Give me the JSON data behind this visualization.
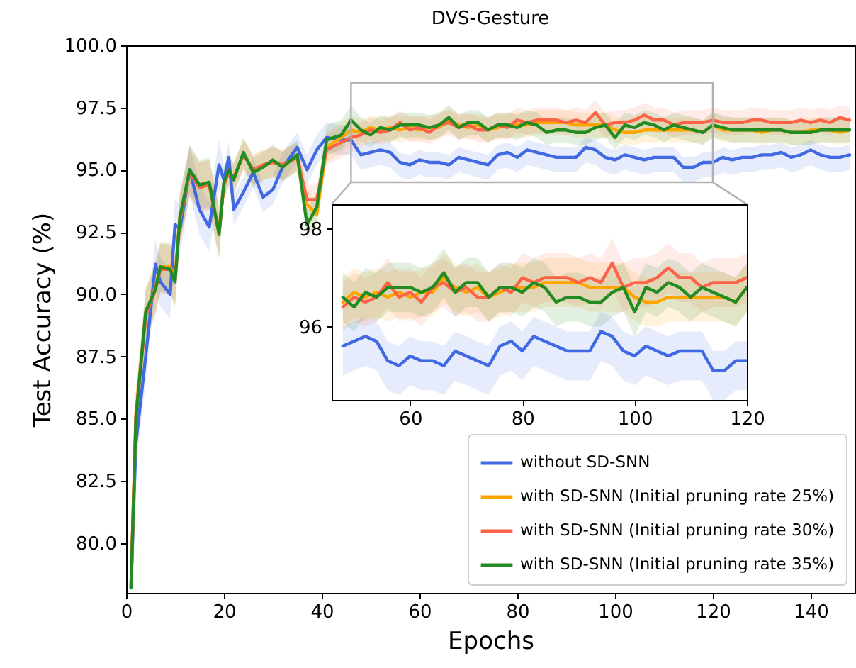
{
  "chart_data": [
    {
      "type": "line",
      "title": "DVS-Gesture",
      "xlabel": "Epochs",
      "ylabel": "Test Accuracy (%)",
      "xlim": [
        0,
        149
      ],
      "ylim": [
        78,
        100
      ],
      "xticks": [
        0,
        20,
        40,
        60,
        80,
        100,
        120,
        140
      ],
      "yticks": [
        {
          "value": 80,
          "label": "80.0"
        },
        82.5,
        {
          "value": 85,
          "label": "85.0"
        },
        87.5,
        {
          "value": 90,
          "label": "90.0"
        },
        92.5,
        {
          "value": 95,
          "label": "95.0"
        },
        97.5,
        {
          "value": 100,
          "label": "100.0"
        }
      ],
      "grid": false,
      "legend": "bottom right",
      "x": [
        1,
        2,
        4,
        6,
        7,
        9,
        10,
        11,
        13,
        15,
        17,
        19,
        20,
        21,
        22,
        24,
        26,
        28,
        30,
        32,
        35,
        37,
        39,
        41,
        44,
        46,
        48,
        50,
        52,
        54,
        56,
        58,
        60,
        62,
        64,
        66,
        68,
        70,
        72,
        74,
        76,
        78,
        80,
        82,
        84,
        86,
        88,
        90,
        92,
        94,
        96,
        98,
        100,
        102,
        104,
        106,
        108,
        110,
        112,
        114,
        116,
        118,
        120,
        122,
        124,
        126,
        128,
        130,
        132,
        134,
        136,
        138,
        140,
        142,
        144,
        146,
        148
      ],
      "series": [
        {
          "name": "without SD-SNN",
          "color": "#4169e1",
          "values": [
            78.2,
            84,
            87.5,
            91.2,
            90.5,
            90,
            92.8,
            92.6,
            95,
            93.4,
            92.7,
            95.2,
            94.6,
            95.5,
            93.4,
            94.1,
            94.9,
            93.9,
            94.2,
            95.1,
            95.9,
            95.0,
            95.8,
            96.3,
            96.2,
            96.2,
            95.6,
            95.7,
            95.8,
            95.7,
            95.3,
            95.2,
            95.4,
            95.3,
            95.3,
            95.2,
            95.5,
            95.4,
            95.3,
            95.2,
            95.6,
            95.7,
            95.5,
            95.8,
            95.7,
            95.6,
            95.5,
            95.5,
            95.5,
            95.9,
            95.8,
            95.5,
            95.4,
            95.6,
            95.5,
            95.4,
            95.5,
            95.5,
            95.5,
            95.1,
            95.1,
            95.3,
            95.3,
            95.5,
            95.4,
            95.5,
            95.5,
            95.6,
            95.6,
            95.7,
            95.5,
            95.6,
            95.8,
            95.6,
            95.5,
            95.5,
            95.6
          ],
          "lower": [
            78.0,
            83,
            86.5,
            90.2,
            89.5,
            89,
            91.8,
            91.6,
            94,
            92.4,
            91.7,
            94.2,
            93.8,
            94.9,
            92.8,
            93.5,
            94.3,
            93.3,
            93.6,
            94.5,
            95.3,
            94.4,
            95.2,
            95.7,
            95.6,
            95.6,
            95.0,
            95.1,
            95.2,
            95.1,
            94.7,
            94.6,
            94.8,
            94.7,
            94.7,
            94.6,
            94.9,
            94.8,
            94.7,
            94.6,
            95.0,
            95.1,
            94.9,
            95.2,
            95.1,
            95.0,
            94.9,
            94.9,
            94.9,
            95.3,
            95.2,
            94.9,
            94.8,
            95.0,
            94.9,
            94.8,
            94.9,
            94.9,
            94.9,
            94.5,
            94.5,
            94.7,
            94.7,
            94.9,
            94.8,
            94.9,
            94.9,
            95.0,
            95.0,
            95.1,
            94.9,
            95.0,
            95.2,
            95.0,
            94.9,
            94.9,
            95.0
          ],
          "upper": [
            79.2,
            85,
            88.5,
            92.2,
            91.5,
            91,
            93.8,
            93.6,
            96,
            94.4,
            93.7,
            96.2,
            95.2,
            96.1,
            94.0,
            94.7,
            95.5,
            94.5,
            94.8,
            95.7,
            96.5,
            95.6,
            96.4,
            96.9,
            96.8,
            96.8,
            96.0,
            96.1,
            96.2,
            96.1,
            95.7,
            95.6,
            95.8,
            95.7,
            95.7,
            95.6,
            95.9,
            95.8,
            95.7,
            95.6,
            96.0,
            96.1,
            95.9,
            96.2,
            96.1,
            96.0,
            95.9,
            95.9,
            95.9,
            96.3,
            96.2,
            95.9,
            95.8,
            96.0,
            95.9,
            95.8,
            95.9,
            95.9,
            95.9,
            95.5,
            95.5,
            95.7,
            95.7,
            95.9,
            95.8,
            95.9,
            95.9,
            96.0,
            96.0,
            96.1,
            95.9,
            96.0,
            96.2,
            96.0,
            95.9,
            95.9,
            96.0
          ]
        },
        {
          "name": "with SD-SNN (Initial pruning rate 25%)",
          "color": "#ffa500",
          "values": [
            78.3,
            85.2,
            89.2,
            90.3,
            91.1,
            91.1,
            90.6,
            93.1,
            94.9,
            94.3,
            94.4,
            92.5,
            94.4,
            94.9,
            94.7,
            95.6,
            95,
            95.2,
            95.3,
            95.2,
            95.5,
            93.6,
            93.2,
            95.9,
            96.3,
            96.6,
            96.5,
            96.7,
            96.6,
            96.7,
            96.6,
            96.7,
            96.6,
            96.7,
            96.7,
            97.0,
            96.8,
            96.7,
            96.8,
            96.6,
            96.7,
            96.8,
            96.8,
            96.8,
            96.9,
            96.9,
            96.9,
            96.9,
            96.8,
            96.8,
            96.8,
            96.8,
            96.6,
            96.5,
            96.5,
            96.6,
            96.6,
            96.6,
            96.6,
            96.6,
            96.6,
            96.5,
            96.8,
            96.6,
            96.6,
            96.6,
            96.6,
            96.5,
            96.6,
            96.6,
            96.5,
            96.5,
            96.6,
            96.6,
            96.6,
            96.5,
            96.6
          ],
          "lower": [
            78.0,
            84.2,
            88.2,
            89.3,
            90.1,
            90.1,
            89.6,
            92.1,
            93.9,
            93.3,
            93.4,
            91.5,
            93.8,
            94.3,
            94.1,
            95.0,
            94.4,
            94.6,
            94.7,
            94.6,
            94.9,
            93.0,
            92.6,
            95.3,
            95.7,
            96.0,
            96.0,
            96.2,
            96.1,
            96.2,
            96.1,
            96.2,
            96.1,
            96.2,
            96.2,
            96.5,
            96.3,
            96.2,
            96.3,
            96.1,
            96.2,
            96.3,
            96.3,
            96.3,
            96.4,
            96.4,
            96.4,
            96.4,
            96.3,
            96.3,
            96.3,
            96.3,
            96.1,
            96.0,
            96.0,
            96.1,
            96.1,
            96.1,
            96.1,
            96.1,
            96.1,
            96.0,
            96.3,
            96.1,
            96.1,
            96.1,
            96.1,
            96.0,
            96.1,
            96.1,
            96.0,
            96.0,
            96.1,
            96.1,
            96.1,
            96.0,
            96.1
          ],
          "upper": [
            79.3,
            86.2,
            90.2,
            91.3,
            92.1,
            92.1,
            91.6,
            94.1,
            95.9,
            95.3,
            95.4,
            93.5,
            95.0,
            95.5,
            95.3,
            96.2,
            95.6,
            95.8,
            95.9,
            95.8,
            96.1,
            94.2,
            93.8,
            96.5,
            96.9,
            97.2,
            97.0,
            97.2,
            97.1,
            97.2,
            97.1,
            97.2,
            97.1,
            97.2,
            97.2,
            97.5,
            97.3,
            97.2,
            97.3,
            97.1,
            97.2,
            97.3,
            97.3,
            97.3,
            97.4,
            97.4,
            97.4,
            97.4,
            97.3,
            97.3,
            97.3,
            97.3,
            97.1,
            97.0,
            97.0,
            97.1,
            97.1,
            97.1,
            97.1,
            97.1,
            97.1,
            97.0,
            97.3,
            97.1,
            97.1,
            97.1,
            97.1,
            97.0,
            97.1,
            97.1,
            97.0,
            97.0,
            97.1,
            97.1,
            97.1,
            97.0,
            97.1
          ]
        },
        {
          "name": "with SD-SNN (Initial pruning rate 30%)",
          "color": "#ff6347",
          "values": [
            78.3,
            85.1,
            89.1,
            90.2,
            91.0,
            91,
            90.6,
            93.0,
            94.9,
            94.3,
            94.4,
            92.5,
            94.4,
            94.9,
            94.7,
            95.6,
            95,
            95.2,
            95.3,
            95.2,
            95.5,
            93.8,
            93.8,
            95.8,
            96.1,
            96.3,
            96.4,
            96.6,
            96.5,
            96.6,
            96.9,
            96.6,
            96.7,
            96.5,
            96.8,
            96.9,
            96.7,
            96.8,
            96.6,
            96.6,
            96.8,
            96.7,
            97.0,
            96.9,
            97.0,
            97.0,
            97.0,
            96.9,
            97.0,
            96.9,
            97.3,
            96.8,
            96.9,
            96.9,
            97.0,
            97.2,
            97.0,
            97.0,
            96.8,
            96.9,
            96.9,
            96.9,
            97.0,
            96.9,
            96.9,
            96.9,
            97.0,
            97.0,
            96.9,
            96.9,
            96.9,
            97.0,
            96.9,
            97.0,
            96.9,
            97.1,
            97.0
          ],
          "lower": [
            78.0,
            84.1,
            88.1,
            89.2,
            90.0,
            90,
            89.6,
            92.0,
            93.9,
            93.3,
            93.4,
            91.5,
            93.8,
            94.3,
            94.1,
            95.0,
            94.4,
            94.6,
            94.7,
            94.6,
            94.9,
            93.2,
            93.2,
            95.2,
            95.5,
            95.7,
            95.9,
            96.1,
            96.0,
            96.1,
            96.4,
            96.1,
            96.2,
            96.0,
            96.3,
            96.4,
            96.2,
            96.3,
            96.1,
            96.1,
            96.3,
            96.2,
            96.5,
            96.4,
            96.5,
            96.5,
            96.5,
            96.4,
            96.5,
            96.4,
            96.8,
            96.3,
            96.4,
            96.4,
            96.5,
            96.7,
            96.5,
            96.5,
            96.3,
            96.4,
            96.4,
            96.4,
            96.5,
            96.4,
            96.4,
            96.4,
            96.5,
            96.5,
            96.4,
            96.4,
            96.4,
            96.5,
            96.4,
            96.5,
            96.4,
            96.6,
            96.5
          ],
          "upper": [
            79.3,
            86.1,
            90.1,
            91.2,
            92.0,
            92,
            91.6,
            94.0,
            95.9,
            95.3,
            95.4,
            93.5,
            95.0,
            95.5,
            95.3,
            96.2,
            95.6,
            95.8,
            95.9,
            95.8,
            96.1,
            94.4,
            94.4,
            96.4,
            96.7,
            96.9,
            96.9,
            97.1,
            97.0,
            97.1,
            97.4,
            97.1,
            97.2,
            97.0,
            97.3,
            97.4,
            97.2,
            97.3,
            97.1,
            97.1,
            97.3,
            97.2,
            97.5,
            97.4,
            97.5,
            97.5,
            97.5,
            97.4,
            97.5,
            97.4,
            97.8,
            97.3,
            97.4,
            97.4,
            97.5,
            97.7,
            97.5,
            97.5,
            97.3,
            97.4,
            97.4,
            97.4,
            97.5,
            97.4,
            97.4,
            97.4,
            97.5,
            97.5,
            97.4,
            97.4,
            97.4,
            97.5,
            97.4,
            97.5,
            97.4,
            97.6,
            97.5
          ]
        },
        {
          "name": "with SD-SNN (Initial pruning rate 35%)",
          "color": "#228b22",
          "values": [
            78.2,
            85,
            89.3,
            90.2,
            91.1,
            91,
            90.5,
            93.1,
            95,
            94.4,
            94.5,
            92.4,
            94.5,
            95,
            94.6,
            95.7,
            94.9,
            95.1,
            95.4,
            95.1,
            95.6,
            92.8,
            93.5,
            96.2,
            96.4,
            97.0,
            96.6,
            96.4,
            96.7,
            96.6,
            96.8,
            96.8,
            96.8,
            96.7,
            96.8,
            97.1,
            96.7,
            96.9,
            96.9,
            96.6,
            96.8,
            96.8,
            96.7,
            96.9,
            96.8,
            96.5,
            96.6,
            96.6,
            96.5,
            96.5,
            96.7,
            96.8,
            96.3,
            96.8,
            96.7,
            96.9,
            96.8,
            96.6,
            96.8,
            96.7,
            96.6,
            96.5,
            96.8,
            96.7,
            96.6,
            96.6,
            96.6,
            96.6,
            96.6,
            96.6,
            96.5,
            96.5,
            96.5,
            96.6,
            96.6,
            96.6,
            96.6
          ],
          "lower": [
            78.0,
            84,
            88.3,
            89.2,
            90.1,
            90,
            89.5,
            92.1,
            94,
            93.4,
            93.5,
            91.4,
            93.9,
            94.4,
            94.0,
            95.1,
            94.3,
            94.5,
            94.8,
            94.5,
            95.0,
            92.2,
            92.9,
            95.6,
            95.8,
            96.4,
            96.1,
            95.9,
            96.2,
            96.1,
            96.3,
            96.3,
            96.3,
            96.2,
            96.3,
            96.6,
            96.2,
            96.4,
            96.4,
            96.1,
            96.3,
            96.3,
            96.2,
            96.4,
            96.3,
            96.0,
            96.1,
            96.1,
            96.0,
            96.0,
            96.2,
            96.3,
            95.8,
            96.3,
            96.2,
            96.4,
            96.3,
            96.1,
            96.3,
            96.2,
            96.1,
            96.0,
            96.3,
            96.2,
            96.1,
            96.1,
            96.1,
            96.1,
            96.1,
            96.1,
            96.0,
            96.0,
            96.0,
            96.1,
            96.1,
            96.1,
            96.1
          ],
          "upper": [
            79.2,
            86,
            90.3,
            91.2,
            92.1,
            92,
            91.5,
            94.1,
            96,
            95.4,
            95.5,
            93.4,
            95.1,
            95.6,
            95.2,
            96.3,
            95.5,
            95.7,
            96.0,
            95.7,
            96.2,
            93.4,
            94.1,
            96.8,
            97.0,
            97.6,
            97.1,
            96.9,
            97.2,
            97.1,
            97.3,
            97.3,
            97.3,
            97.2,
            97.3,
            97.6,
            97.2,
            97.4,
            97.4,
            97.1,
            97.3,
            97.3,
            97.2,
            97.4,
            97.3,
            97.0,
            97.1,
            97.1,
            97.0,
            97.0,
            97.2,
            97.3,
            96.8,
            97.3,
            97.2,
            97.4,
            97.3,
            97.1,
            97.3,
            97.2,
            97.1,
            97.0,
            97.3,
            97.2,
            97.1,
            97.1,
            97.1,
            97.1,
            97.1,
            97.1,
            97.0,
            97.0,
            97.0,
            97.1,
            97.1,
            97.1,
            97.1
          ]
        }
      ]
    },
    {
      "type": "line",
      "xlim": [
        46,
        120
      ],
      "ylim": [
        94.5,
        98.5
      ],
      "xticks": [
        60,
        80,
        100,
        120
      ],
      "yticks": [
        96,
        98
      ],
      "grid": false,
      "x": [
        48,
        50,
        52,
        54,
        56,
        58,
        60,
        62,
        64,
        66,
        68,
        70,
        72,
        74,
        76,
        78,
        80,
        82,
        84,
        86,
        88,
        90,
        92,
        94,
        96,
        98,
        100,
        102,
        104,
        106,
        108,
        110,
        112,
        114,
        116,
        118,
        120
      ],
      "series": [
        {
          "color": "#4169e1",
          "values": [
            95.6,
            95.7,
            95.8,
            95.7,
            95.3,
            95.2,
            95.4,
            95.3,
            95.3,
            95.2,
            95.5,
            95.4,
            95.3,
            95.2,
            95.6,
            95.7,
            95.5,
            95.8,
            95.7,
            95.6,
            95.5,
            95.5,
            95.5,
            95.9,
            95.8,
            95.5,
            95.4,
            95.6,
            95.5,
            95.4,
            95.5,
            95.5,
            95.5,
            95.1,
            95.1,
            95.3,
            95.3
          ],
          "lower": [
            95.0,
            95.1,
            95.2,
            95.1,
            94.7,
            94.6,
            94.8,
            94.7,
            94.7,
            94.6,
            94.9,
            94.8,
            94.7,
            94.6,
            95.0,
            95.1,
            94.9,
            95.2,
            95.1,
            95.0,
            94.9,
            94.9,
            94.9,
            95.3,
            95.2,
            94.9,
            94.8,
            95.0,
            94.9,
            94.8,
            94.9,
            94.9,
            94.9,
            94.5,
            94.5,
            94.7,
            94.7
          ],
          "upper": [
            96.0,
            96.1,
            96.2,
            96.1,
            95.7,
            95.6,
            95.8,
            95.7,
            95.7,
            95.6,
            95.9,
            95.8,
            95.7,
            95.6,
            96.0,
            96.1,
            95.9,
            96.2,
            96.1,
            96.0,
            95.9,
            95.9,
            95.9,
            96.3,
            96.2,
            95.9,
            95.8,
            96.0,
            95.9,
            95.8,
            95.9,
            95.9,
            95.9,
            95.5,
            95.5,
            95.7,
            95.7
          ]
        },
        {
          "color": "#ffa500",
          "values": [
            96.5,
            96.7,
            96.6,
            96.7,
            96.6,
            96.7,
            96.6,
            96.7,
            96.7,
            97.0,
            96.8,
            96.7,
            96.8,
            96.6,
            96.7,
            96.8,
            96.8,
            96.8,
            96.9,
            96.9,
            96.9,
            96.9,
            96.8,
            96.8,
            96.8,
            96.8,
            96.6,
            96.5,
            96.5,
            96.6,
            96.6,
            96.6,
            96.6,
            96.6,
            96.6,
            96.5,
            96.8
          ],
          "lower": [
            96.0,
            96.2,
            96.1,
            96.2,
            96.1,
            96.2,
            96.1,
            96.2,
            96.2,
            96.5,
            96.3,
            96.2,
            96.3,
            96.1,
            96.2,
            96.3,
            96.3,
            96.3,
            96.4,
            96.4,
            96.4,
            96.4,
            96.3,
            96.3,
            96.3,
            96.3,
            96.1,
            96.0,
            96.0,
            96.1,
            96.1,
            96.1,
            96.1,
            96.1,
            96.1,
            96.0,
            96.3
          ],
          "upper": [
            97.0,
            97.2,
            97.1,
            97.2,
            97.1,
            97.2,
            97.1,
            97.2,
            97.2,
            97.5,
            97.3,
            97.2,
            97.3,
            97.1,
            97.2,
            97.3,
            97.3,
            97.3,
            97.4,
            97.4,
            97.4,
            97.4,
            97.3,
            97.3,
            97.3,
            97.3,
            97.1,
            97.0,
            97.0,
            97.1,
            97.1,
            97.1,
            97.1,
            97.1,
            97.1,
            97.0,
            97.3
          ]
        },
        {
          "color": "#ff6347",
          "values": [
            96.4,
            96.6,
            96.5,
            96.6,
            96.9,
            96.6,
            96.7,
            96.5,
            96.8,
            96.9,
            96.7,
            96.8,
            96.6,
            96.6,
            96.8,
            96.7,
            97.0,
            96.9,
            97.0,
            97.0,
            97.0,
            96.9,
            97.0,
            96.9,
            97.3,
            96.8,
            96.9,
            96.9,
            97.0,
            97.2,
            97.0,
            97.0,
            96.8,
            96.9,
            96.9,
            96.9,
            97.0
          ],
          "lower": [
            95.9,
            96.1,
            96.0,
            96.1,
            96.4,
            96.1,
            96.2,
            96.0,
            96.3,
            96.4,
            96.2,
            96.3,
            96.1,
            96.1,
            96.3,
            96.2,
            96.5,
            96.4,
            96.5,
            96.5,
            96.5,
            96.4,
            96.5,
            96.4,
            96.8,
            96.3,
            96.4,
            96.4,
            96.5,
            96.7,
            96.5,
            96.5,
            96.3,
            96.4,
            96.4,
            96.4,
            96.5
          ],
          "upper": [
            96.9,
            97.1,
            97.0,
            97.1,
            97.4,
            97.1,
            97.2,
            97.0,
            97.3,
            97.4,
            97.2,
            97.3,
            97.1,
            97.1,
            97.3,
            97.2,
            97.5,
            97.4,
            97.5,
            97.5,
            97.5,
            97.4,
            97.5,
            97.4,
            97.8,
            97.3,
            97.4,
            97.4,
            97.5,
            97.7,
            97.5,
            97.5,
            97.3,
            97.4,
            97.4,
            97.4,
            97.5
          ]
        },
        {
          "color": "#228b22",
          "values": [
            96.6,
            96.4,
            96.7,
            96.6,
            96.8,
            96.8,
            96.8,
            96.7,
            96.8,
            97.1,
            96.7,
            96.9,
            96.9,
            96.6,
            96.8,
            96.8,
            96.7,
            96.9,
            96.8,
            96.5,
            96.6,
            96.6,
            96.5,
            96.5,
            96.7,
            96.8,
            96.3,
            96.8,
            96.7,
            96.9,
            96.8,
            96.6,
            96.8,
            96.7,
            96.6,
            96.5,
            96.8
          ],
          "lower": [
            96.1,
            95.9,
            96.2,
            96.1,
            96.3,
            96.3,
            96.3,
            96.2,
            96.3,
            96.6,
            96.2,
            96.4,
            96.4,
            96.1,
            96.3,
            96.3,
            96.2,
            96.4,
            96.3,
            96.0,
            96.1,
            96.1,
            96.0,
            96.0,
            96.2,
            96.3,
            95.8,
            96.3,
            96.2,
            96.4,
            96.3,
            96.1,
            96.3,
            96.2,
            96.1,
            96.0,
            96.3
          ],
          "upper": [
            97.1,
            96.9,
            97.2,
            97.1,
            97.3,
            97.3,
            97.3,
            97.2,
            97.3,
            97.6,
            97.2,
            97.4,
            97.4,
            97.1,
            97.3,
            97.3,
            97.2,
            97.4,
            97.3,
            97.0,
            97.1,
            97.1,
            97.0,
            97.0,
            97.2,
            97.3,
            96.8,
            97.3,
            97.2,
            97.4,
            97.3,
            97.1,
            97.3,
            97.2,
            97.1,
            97.0,
            97.3
          ]
        }
      ]
    }
  ]
}
